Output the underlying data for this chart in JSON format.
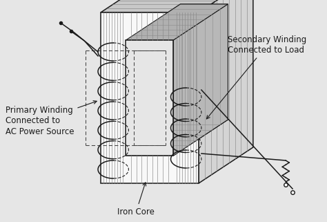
{
  "bg_color": "#e6e6e6",
  "line_color": "#1a1a1a",
  "white": "#f8f8f8",
  "gray_top": "#c8c8c8",
  "gray_right": "#d4d4d4",
  "gray_hole_top": "#b0b0b0",
  "gray_hole_right": "#b8b8b8",
  "lam_color": "#888888",
  "labels": {
    "primary": "Primary Winding\nConnected to\nAC Power Source",
    "secondary": "Secondary Winding\nConnected to Load",
    "iron_core": "Iron Core"
  },
  "font_size": 8.5,
  "lw_main": 1.1,
  "lw_lam": 0.45,
  "lw_dash": 0.75
}
